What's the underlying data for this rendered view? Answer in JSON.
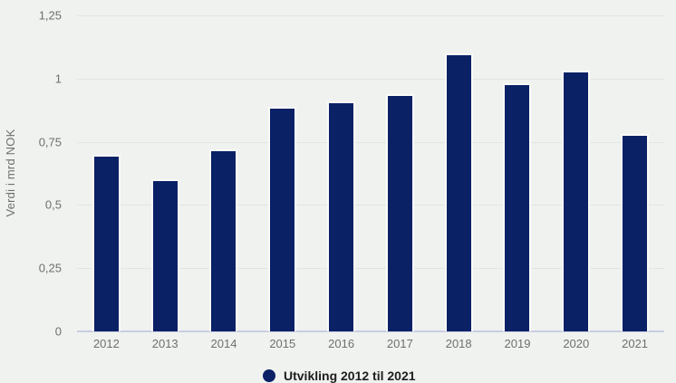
{
  "chart_data": {
    "type": "bar",
    "title": "",
    "ylabel": "Verdi i mrd NOK",
    "xlabel": "",
    "categories": [
      "2012",
      "2013",
      "2014",
      "2015",
      "2016",
      "2017",
      "2018",
      "2019",
      "2020",
      "2021"
    ],
    "values": [
      0.7,
      0.6,
      0.72,
      0.89,
      0.91,
      0.94,
      1.1,
      0.98,
      1.03,
      0.78
    ],
    "ylim": [
      0,
      1.25
    ],
    "ytick_values": [
      0,
      0.25,
      0.5,
      0.75,
      1,
      1.25
    ],
    "ytick_labels": [
      "0",
      "0,25",
      "0,5",
      "0,75",
      "1",
      "1,25"
    ],
    "grid": true,
    "legend_position": "bottom",
    "legend": {
      "label": "Utvikling 2012 til 2021"
    },
    "colors": {
      "bar": "#0a2166",
      "bar_outline": "#fafbf8",
      "background": "#f0f2ef",
      "gridline": "#e3e5e2",
      "baseline": "#c7cde2",
      "axis_text": "#6f6f6f",
      "legend_text": "#1d1d1d"
    }
  }
}
